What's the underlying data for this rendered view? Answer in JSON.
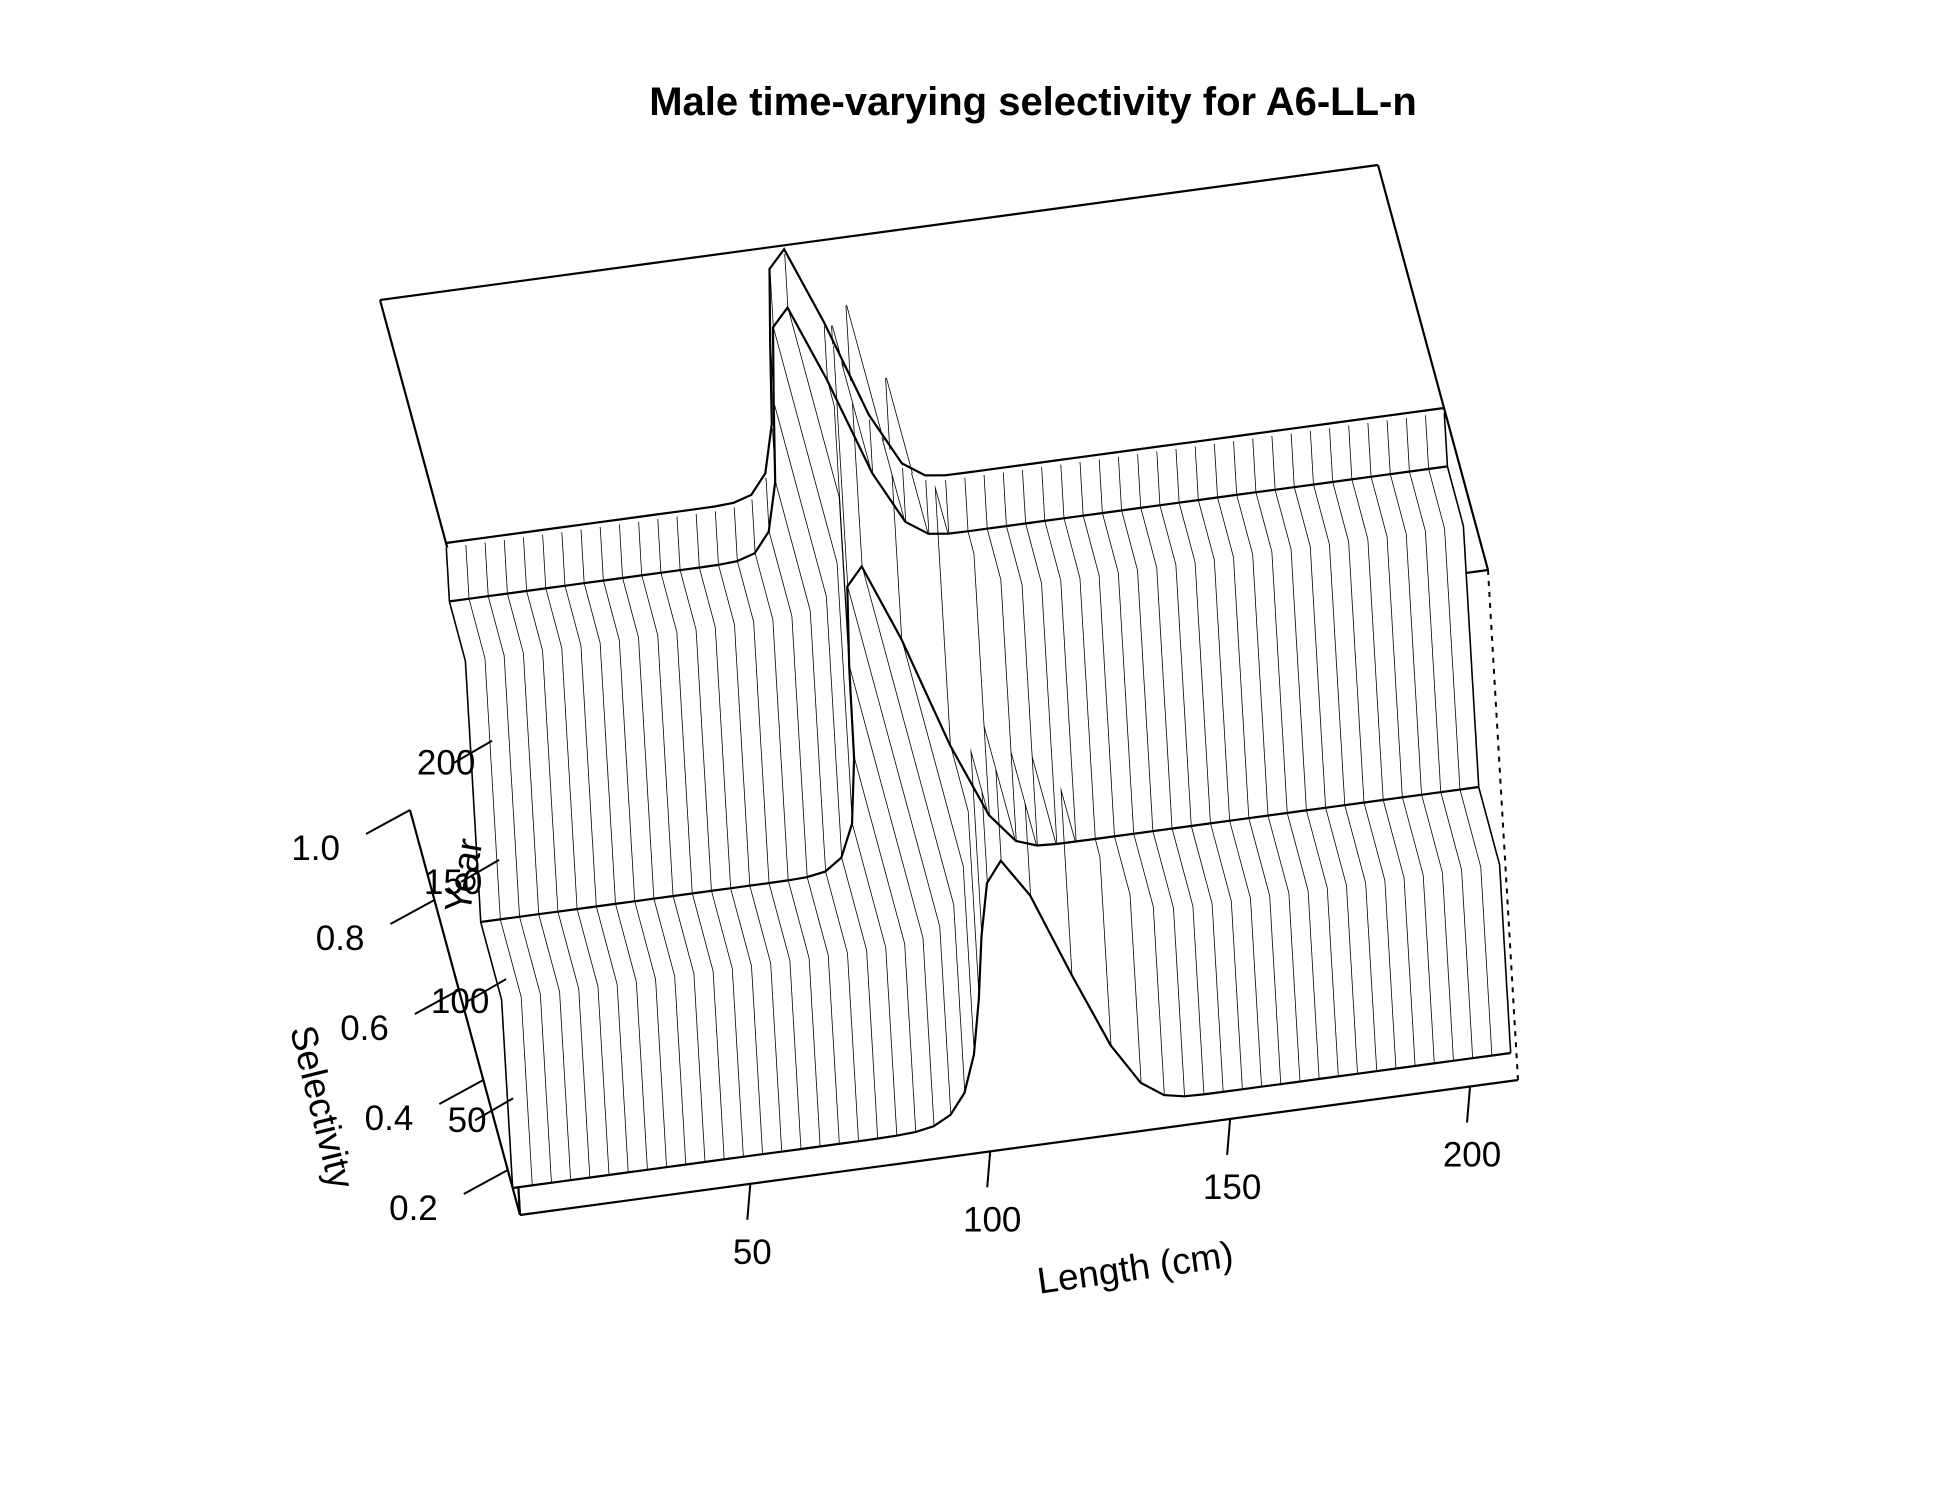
{
  "chart_data": {
    "type": "surface3d",
    "title": "Male time-varying selectivity for A6-LL-n",
    "xlabel": "Length (cm)",
    "ylabel": "Year",
    "zlabel": "Selectivity",
    "xlim": [
      2,
      210
    ],
    "ylim": [
      1,
      215
    ],
    "zlim": [
      0.1,
      1.0
    ],
    "x_ticks": [
      50,
      100,
      150,
      200
    ],
    "y_ticks": [
      50,
      100,
      150,
      200
    ],
    "z_ticks": [
      0.2,
      0.4,
      0.6,
      0.8,
      1.0
    ],
    "x_tick_labels": [
      "50",
      "100",
      "150",
      "200"
    ],
    "y_tick_labels": [
      "50",
      "100",
      "150",
      "200"
    ],
    "z_tick_labels": [
      "0.2",
      "0.4",
      "0.6",
      "0.8",
      "1.0"
    ],
    "x_step": 4,
    "year_breakpoints": [
      80,
      190
    ],
    "selectivity_curves": [
      {
        "years": "1-80",
        "baseline": 0.16,
        "peak": 0.72,
        "peak_length": 118,
        "width_left": 14,
        "width_right": 10
      },
      {
        "years": "81-190",
        "baseline": 0.33,
        "peak": 0.99,
        "peak_length": 97,
        "width_left": 11,
        "width_right": 9
      },
      {
        "years": "191-215",
        "baseline": 0.46,
        "peak": 1.0,
        "peak_length": 85,
        "width_left": 10,
        "width_right": 8
      }
    ]
  }
}
